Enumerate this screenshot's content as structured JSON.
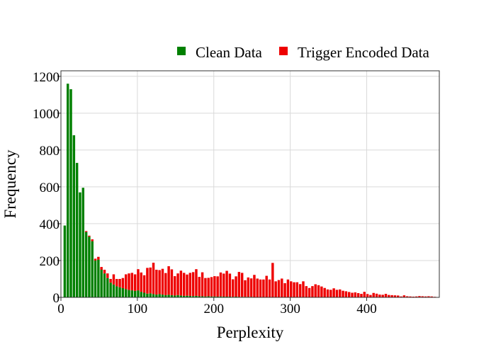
{
  "chart_data": {
    "type": "bar",
    "barmode": "stack",
    "xlabel": "Perplexity",
    "ylabel": "Frequency",
    "xlim": [
      0,
      495
    ],
    "ylim": [
      0,
      1230
    ],
    "xticks": [
      0,
      100,
      200,
      300,
      400
    ],
    "yticks": [
      0,
      200,
      400,
      600,
      800,
      1000,
      1200
    ],
    "grid": true,
    "legend_position": "top-right",
    "bin_width": 3.9,
    "x": [
      5,
      9,
      13,
      17,
      21,
      25,
      29,
      33,
      37,
      41,
      45,
      49,
      53,
      57,
      61,
      65,
      69,
      73,
      77,
      81,
      85,
      89,
      93,
      97,
      101,
      105,
      109,
      113,
      117,
      121,
      125,
      129,
      133,
      137,
      141,
      145,
      149,
      153,
      157,
      161,
      165,
      169,
      173,
      177,
      181,
      185,
      189,
      193,
      197,
      201,
      205,
      209,
      213,
      217,
      221,
      225,
      229,
      233,
      237,
      241,
      245,
      249,
      253,
      257,
      261,
      265,
      269,
      273,
      277,
      281,
      285,
      289,
      293,
      297,
      301,
      305,
      309,
      313,
      317,
      321,
      325,
      329,
      333,
      337,
      341,
      345,
      349,
      353,
      357,
      361,
      365,
      369,
      373,
      377,
      381,
      385,
      389,
      393,
      397,
      401,
      405,
      409,
      413,
      417,
      421,
      425,
      429,
      433,
      437,
      441,
      445,
      449,
      453,
      457,
      461,
      465,
      469,
      473,
      477,
      481,
      485,
      489
    ],
    "series": [
      {
        "name": "Clean Data",
        "color": "#008000",
        "values": [
          390,
          1160,
          1130,
          880,
          730,
          570,
          595,
          355,
          330,
          305,
          200,
          205,
          150,
          130,
          105,
          80,
          70,
          60,
          55,
          50,
          45,
          40,
          38,
          35,
          38,
          30,
          25,
          20,
          22,
          18,
          15,
          18,
          15,
          12,
          14,
          12,
          10,
          12,
          10,
          8,
          9,
          8,
          7,
          8,
          6,
          6,
          5,
          6,
          5,
          5,
          4,
          5,
          4,
          4,
          4,
          3,
          4,
          3,
          3,
          3,
          3,
          3,
          2,
          2,
          2,
          2,
          2,
          2,
          2,
          2,
          2,
          2,
          2,
          2,
          2,
          2,
          2,
          2,
          2,
          1,
          1,
          1,
          1,
          1,
          1,
          1,
          1,
          1,
          1,
          1,
          1,
          1,
          1,
          1,
          1,
          1,
          1,
          1,
          1,
          1,
          1,
          1,
          1,
          1,
          1,
          1,
          1,
          1,
          1,
          1,
          1,
          1,
          1,
          1,
          1,
          1,
          1,
          1,
          1,
          1,
          1,
          1
        ]
      },
      {
        "name": "Trigger Encoded Data",
        "color": "#ee0000",
        "values": [
          0,
          0,
          0,
          0,
          0,
          0,
          0,
          5,
          5,
          10,
          10,
          15,
          15,
          20,
          25,
          20,
          55,
          40,
          45,
          55,
          80,
          90,
          95,
          90,
          115,
          105,
          95,
          140,
          140,
          170,
          135,
          130,
          140,
          120,
          155,
          140,
          105,
          118,
          135,
          125,
          115,
          125,
          130,
          145,
          105,
          130,
          100,
          100,
          105,
          110,
          110,
          130,
          125,
          140,
          125,
          95,
          110,
          135,
          130,
          90,
          105,
          100,
          120,
          100,
          95,
          95,
          115,
          95,
          185,
          85,
          92,
          100,
          75,
          95,
          85,
          80,
          80,
          70,
          85,
          60,
          50,
          60,
          70,
          65,
          58,
          50,
          42,
          40,
          48,
          40,
          42,
          35,
          32,
          28,
          24,
          26,
          22,
          18,
          29,
          17,
          12,
          23,
          19,
          14,
          13,
          18,
          12,
          11,
          10,
          9,
          4,
          10,
          5,
          4,
          3,
          4,
          6,
          5,
          4,
          5,
          4,
          2
        ]
      }
    ]
  }
}
